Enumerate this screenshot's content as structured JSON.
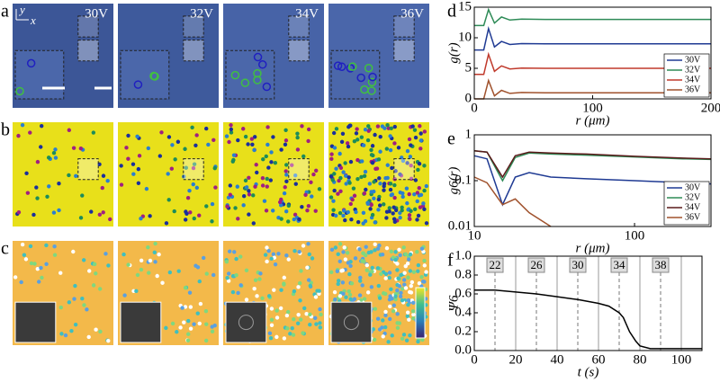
{
  "image_panels": {
    "labels": [
      "a",
      "b",
      "c"
    ],
    "voltages": [
      "30V",
      "32V",
      "34V",
      "36V"
    ],
    "axis_y": "y",
    "axis_x": "x"
  },
  "chart_data": [
    {
      "type": "line",
      "label": "d",
      "xlabel": "r (μm)",
      "ylabel": "g(r)",
      "x": [
        0,
        8,
        12,
        17,
        23,
        30,
        40,
        60,
        100,
        150,
        200
      ],
      "series": [
        {
          "name": "30V",
          "color": "#1f3a93",
          "values": [
            8,
            8,
            11.5,
            8.5,
            9.4,
            8.9,
            9.05,
            9,
            9,
            9,
            9
          ]
        },
        {
          "name": "32V",
          "color": "#2e8b57",
          "values": [
            12,
            12,
            14.6,
            12.4,
            13.4,
            12.9,
            13.05,
            13,
            13,
            13,
            13
          ]
        },
        {
          "name": "34V",
          "color": "#c0392b",
          "values": [
            4,
            4,
            7.3,
            4.5,
            5.4,
            4.9,
            5.05,
            5,
            5,
            5,
            5
          ]
        },
        {
          "name": "36V",
          "color": "#a0522d",
          "values": [
            0,
            0,
            3,
            0.5,
            1.4,
            0.9,
            1.05,
            1,
            1,
            1,
            1
          ]
        }
      ],
      "xlim": [
        0,
        200
      ],
      "ylim": [
        0,
        15
      ],
      "xticks": [
        0,
        100,
        200
      ],
      "yticks": [
        0,
        5,
        10,
        15
      ],
      "legend": "lower right"
    },
    {
      "type": "line",
      "label": "e",
      "xlabel": "r (μm)",
      "ylabel": "g6(r)",
      "log_scale": true,
      "x": [
        10,
        12,
        15,
        18,
        22,
        30,
        50,
        100,
        200,
        300
      ],
      "series": [
        {
          "name": "30V",
          "color": "#1f3a93",
          "values": [
            0.35,
            0.3,
            0.03,
            0.12,
            0.15,
            0.12,
            0.11,
            0.1,
            0.09,
            0.085
          ]
        },
        {
          "name": "32V",
          "color": "#2e8b57",
          "values": [
            0.45,
            0.42,
            0.1,
            0.32,
            0.4,
            0.38,
            0.36,
            0.33,
            0.3,
            0.29
          ]
        },
        {
          "name": "34V",
          "color": "#5a1a1a",
          "values": [
            0.45,
            0.42,
            0.12,
            0.35,
            0.42,
            0.4,
            0.38,
            0.34,
            0.31,
            0.3
          ]
        },
        {
          "name": "36V",
          "color": "#a0522d",
          "values": [
            0.12,
            0.09,
            0.03,
            0.04,
            0.02,
            0.01,
            null,
            null,
            null,
            null
          ]
        }
      ],
      "xlim": [
        10,
        300
      ],
      "ylim": [
        0.01,
        1
      ],
      "xticks": [
        10,
        100
      ],
      "yticks": [
        0.01,
        0.1,
        1
      ],
      "legend": "lower right"
    },
    {
      "type": "line",
      "label": "f",
      "xlabel": "t (s)",
      "ylabel": "Ψ6",
      "x": [
        0,
        10,
        20,
        30,
        40,
        50,
        55,
        60,
        65,
        70,
        72,
        75,
        78,
        80,
        85,
        90,
        100,
        110
      ],
      "series": [
        {
          "name": "Ψ6",
          "color": "#000000",
          "values": [
            0.64,
            0.64,
            0.62,
            0.6,
            0.57,
            0.54,
            0.52,
            0.5,
            0.47,
            0.4,
            0.35,
            0.2,
            0.1,
            0.05,
            0.02,
            0.02,
            0.02,
            0.02
          ]
        }
      ],
      "xlim": [
        0,
        110
      ],
      "ylim": [
        0,
        1
      ],
      "xticks": [
        0,
        20,
        40,
        60,
        80,
        100
      ],
      "yticks": [
        {
          "value": 0,
          "label": "0.0"
        },
        0.2,
        0.4,
        0.6,
        0.8,
        {
          "value": 1,
          "label": "1.0"
        }
      ],
      "grid": true,
      "annotations": [
        {
          "text": "22",
          "x": 10
        },
        {
          "text": "26",
          "x": 30
        },
        {
          "text": "30",
          "x": 50
        },
        {
          "text": "34",
          "x": 70
        },
        {
          "text": "38",
          "x": 90
        }
      ]
    }
  ]
}
